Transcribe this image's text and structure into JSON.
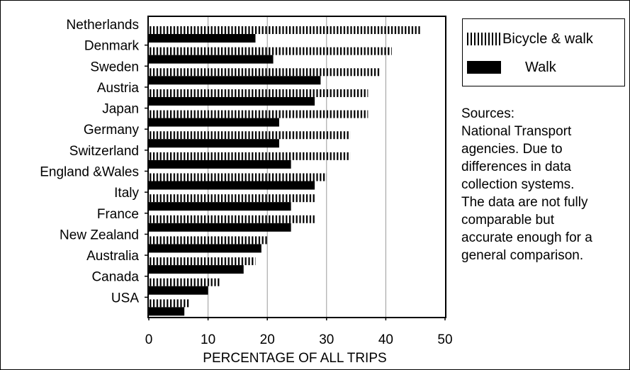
{
  "chart_data": {
    "type": "bar",
    "orientation": "horizontal",
    "categories": [
      "Netherlands",
      "Denmark",
      "Sweden",
      "Austria",
      "Japan",
      "Germany",
      "Switzerland",
      "England &Wales",
      "Italy",
      "France",
      "New Zealand",
      "Australia",
      "Canada",
      "USA"
    ],
    "series": [
      {
        "name": "Bicycle & walk",
        "values": [
          46,
          41,
          39,
          37,
          37,
          34,
          34,
          30,
          28,
          28,
          20,
          18,
          12,
          7
        ],
        "pattern": "vertical-hatch",
        "color": "#000000"
      },
      {
        "name": "Walk",
        "values": [
          18,
          21,
          29,
          28,
          22,
          22,
          24,
          28,
          24,
          24,
          19,
          16,
          10,
          6
        ],
        "pattern": "solid",
        "color": "#000000"
      }
    ],
    "title": "",
    "xlabel": "PERCENTAGE OF ALL TRIPS",
    "ylabel": "",
    "xlim": [
      0,
      50
    ],
    "xticks": [
      "0",
      "10",
      "20",
      "30",
      "40",
      "50"
    ],
    "grid": "vertical",
    "legend_position": "top-right, outside plot"
  },
  "legend": {
    "bicycle_label": "Bicycle & walk",
    "walk_label": "Walk"
  },
  "sources_note": [
    "Sources:",
    "National Transport",
    "agencies. Due to",
    "differences in data",
    "collection  systems.",
    "The data are not fully",
    "comparable but",
    "accurate enough for a",
    "general comparison."
  ]
}
